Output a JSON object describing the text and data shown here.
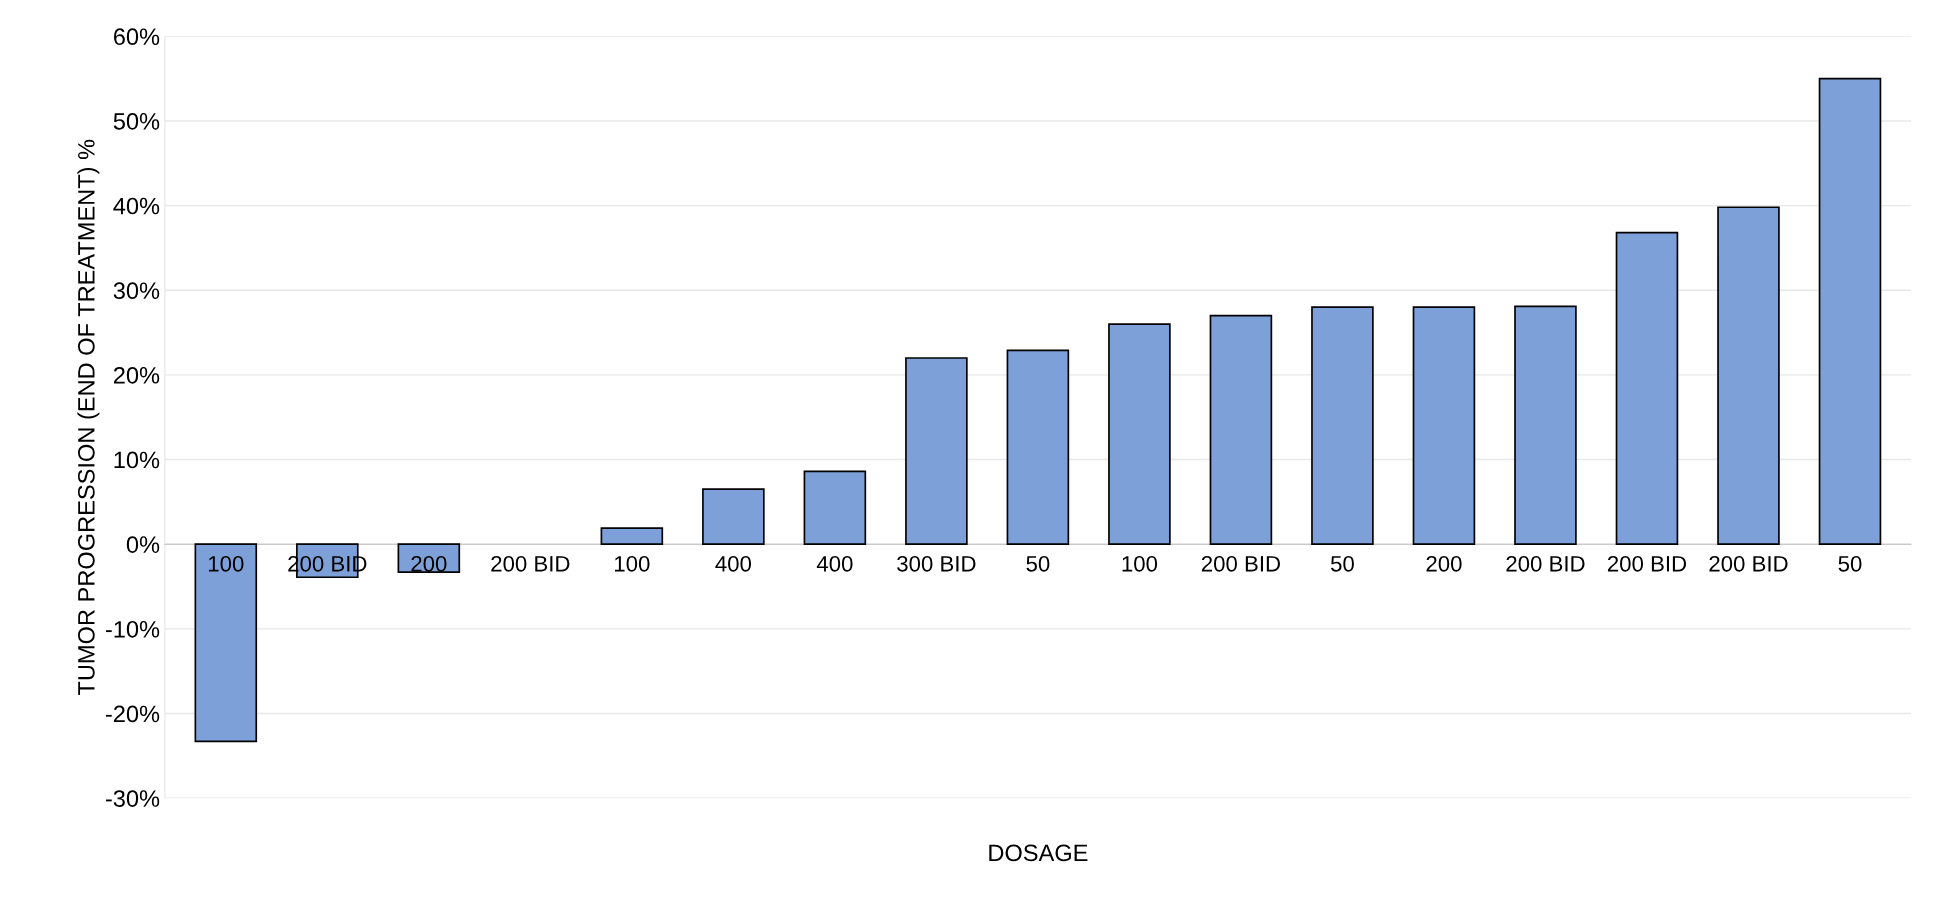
{
  "chart_data": {
    "type": "bar",
    "xlabel": "DOSAGE",
    "ylabel": "TUMOR PROGRESSION (END OF TREATMENT) %",
    "categories": [
      "100",
      "200 BID",
      "200",
      "200 BID",
      "100",
      "400",
      "400",
      "300 BID",
      "50",
      "100",
      "200 BID",
      "50",
      "200",
      "200 BID",
      "200 BID",
      "200 BID",
      "50"
    ],
    "values": [
      -23.3,
      -3.9,
      -3.3,
      null,
      1.9,
      6.5,
      8.6,
      22.0,
      22.9,
      26.0,
      27.0,
      28.0,
      28.0,
      28.1,
      36.8,
      39.8,
      55.0
    ],
    "color": "#7da0d8",
    "ylim": [
      -30,
      60
    ],
    "yticks": [
      {
        "value": -30,
        "label": "-30%"
      },
      {
        "value": -20,
        "label": "-20%"
      },
      {
        "value": -10,
        "label": "-10%"
      },
      {
        "value": 0,
        "label": "0%"
      },
      {
        "value": 10,
        "label": "10%"
      },
      {
        "value": 20,
        "label": "20%"
      },
      {
        "value": 30,
        "label": "30%"
      },
      {
        "value": 40,
        "label": "40%"
      },
      {
        "value": 50,
        "label": "50%"
      },
      {
        "value": 60,
        "label": "60%"
      }
    ],
    "grid": "y"
  }
}
